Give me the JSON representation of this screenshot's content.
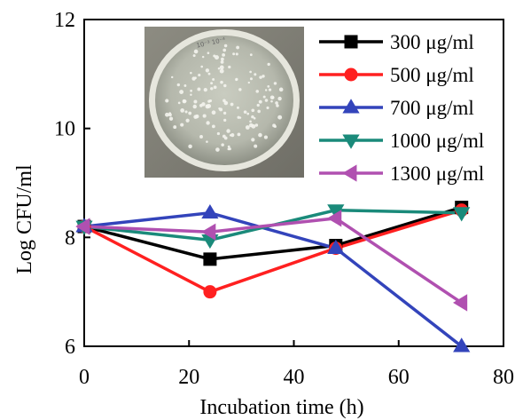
{
  "chart_data": {
    "type": "line",
    "title": "",
    "xlabel": "Incubation time (h)",
    "ylabel": "Log CFU/ml",
    "xlim": [
      0,
      80
    ],
    "ylim": [
      6,
      12
    ],
    "xticks": [
      0,
      20,
      40,
      60,
      80
    ],
    "yticks": [
      6,
      8,
      10,
      12
    ],
    "grid": false,
    "legend_position": "top-right",
    "x": [
      0,
      24,
      48,
      72
    ],
    "series": [
      {
        "name": "300 μg/ml",
        "values": [
          8.2,
          7.6,
          7.85,
          8.55
        ],
        "color": "#000000",
        "marker": "square"
      },
      {
        "name": "500 μg/ml",
        "values": [
          8.2,
          7.0,
          7.8,
          8.5
        ],
        "color": "#ff2020",
        "marker": "circle"
      },
      {
        "name": "700 μg/ml",
        "values": [
          8.2,
          8.45,
          7.8,
          6.0
        ],
        "color": "#3344bb",
        "marker": "triangle-up"
      },
      {
        "name": "1000 μg/ml",
        "values": [
          8.2,
          7.95,
          8.5,
          8.45
        ],
        "color": "#1a8a7a",
        "marker": "triangle-down"
      },
      {
        "name": "1300 μg/ml",
        "values": [
          8.2,
          8.1,
          8.35,
          6.8
        ],
        "color": "#b050b0",
        "marker": "triangle-left"
      }
    ],
    "inset_image": "agar-plate-photo"
  }
}
